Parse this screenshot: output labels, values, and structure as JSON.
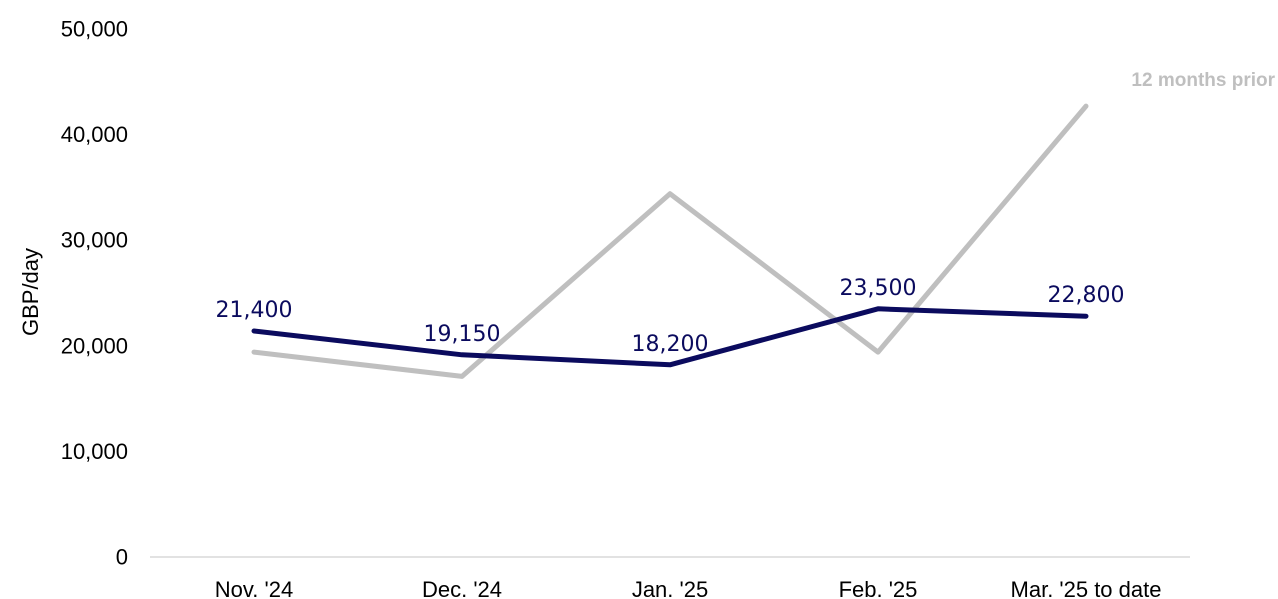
{
  "chart_data": {
    "type": "line",
    "title": "",
    "xlabel": "",
    "ylabel": "GBP/day",
    "ylim": [
      0,
      50000
    ],
    "yticks": [
      0,
      10000,
      20000,
      30000,
      40000,
      50000
    ],
    "ytick_labels": [
      "0",
      "10,000",
      "20,000",
      "30,000",
      "40,000",
      "50,000"
    ],
    "grid": false,
    "categories": [
      "Nov. '24",
      "Dec. '24",
      "Jan. '25",
      "Feb. '25",
      "Mar. '25 to date"
    ],
    "series": [
      {
        "name": "",
        "color": "#0b0b5e",
        "values": [
          21400,
          19150,
          18200,
          23500,
          22800
        ],
        "data_labels": [
          "21,400",
          "19,150",
          "18,200",
          "23,500",
          "22,800"
        ]
      },
      {
        "name": "12 months prior",
        "color": "#bfbfbf",
        "values": [
          19400,
          17100,
          34400,
          19400,
          42700
        ],
        "data_labels": []
      }
    ]
  }
}
